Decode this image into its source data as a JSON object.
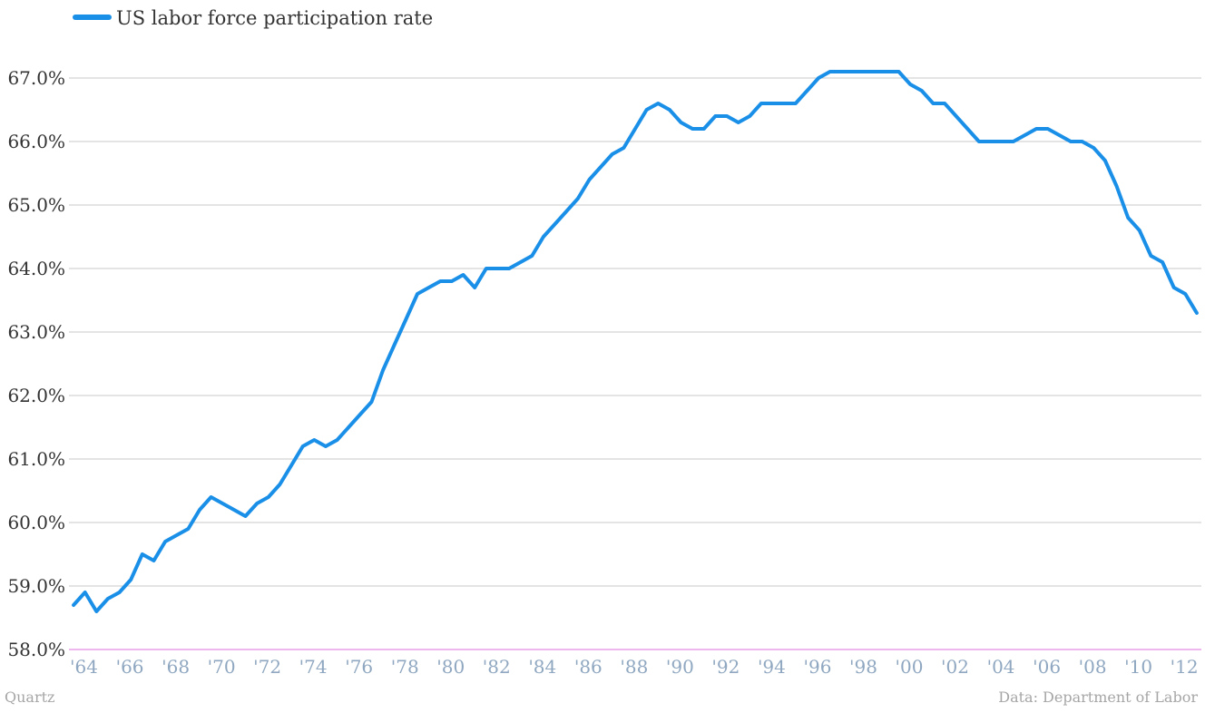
{
  "chart_data": {
    "type": "line",
    "title": "",
    "xlabel": "",
    "ylabel": "",
    "ylim": [
      58.0,
      67.3
    ],
    "xlim": [
      1963.8,
      2013.2
    ],
    "y_ticks": [
      "58.0%",
      "59.0%",
      "60.0%",
      "61.0%",
      "62.0%",
      "63.0%",
      "64.0%",
      "65.0%",
      "66.0%",
      "67.0%"
    ],
    "x_ticks": [
      "'64",
      "'66",
      "'68",
      "'70",
      "'72",
      "'74",
      "'76",
      "'78",
      "'80",
      "'82",
      "'84",
      "'86",
      "'88",
      "'90",
      "'92",
      "'94",
      "'96",
      "'98",
      "'00",
      "'02",
      "'04",
      "'06",
      "'08",
      "'10",
      "'12"
    ],
    "grid": true,
    "legend_position": "top-left",
    "colors": {
      "series": "#1a8fe8",
      "grid": "#c8c8c8",
      "baseline": "#e8a0e8"
    },
    "series": [
      {
        "name": "US labor force participation rate",
        "x": [
          1964.0,
          1964.5,
          1965.0,
          1965.5,
          1966.0,
          1966.5,
          1967.0,
          1967.5,
          1968.0,
          1968.5,
          1969.0,
          1969.5,
          1970.0,
          1970.5,
          1971.0,
          1971.5,
          1972.0,
          1972.5,
          1973.0,
          1973.5,
          1974.0,
          1974.5,
          1975.0,
          1975.5,
          1976.0,
          1976.5,
          1977.0,
          1977.5,
          1978.0,
          1978.5,
          1979.0,
          1979.5,
          1980.0,
          1980.5,
          1981.0,
          1981.5,
          1982.0,
          1982.5,
          1983.0,
          1983.5,
          1984.0,
          1984.5,
          1985.0,
          1985.5,
          1986.0,
          1986.5,
          1987.0,
          1987.5,
          1988.0,
          1988.5,
          1989.0,
          1989.5,
          1990.0,
          1990.5,
          1991.0,
          1991.5,
          1992.0,
          1992.5,
          1993.0,
          1993.5,
          1994.0,
          1994.5,
          1995.0,
          1995.5,
          1996.0,
          1996.5,
          1997.0,
          1997.5,
          1998.0,
          1998.5,
          1999.0,
          1999.5,
          2000.0,
          2000.5,
          2001.0,
          2001.5,
          2002.0,
          2002.5,
          2003.0,
          2003.5,
          2004.0,
          2004.5,
          2005.0,
          2005.5,
          2006.0,
          2006.5,
          2007.0,
          2007.5,
          2008.0,
          2008.5,
          2009.0,
          2009.5,
          2010.0,
          2010.5,
          2011.0,
          2011.5,
          2012.0,
          2012.5,
          2013.0
        ],
        "values": [
          58.7,
          58.9,
          58.6,
          58.8,
          58.9,
          59.1,
          59.5,
          59.4,
          59.7,
          59.8,
          59.9,
          60.2,
          60.4,
          60.3,
          60.2,
          60.1,
          60.3,
          60.4,
          60.6,
          60.9,
          61.2,
          61.3,
          61.2,
          61.3,
          61.5,
          61.7,
          61.9,
          62.4,
          62.8,
          63.2,
          63.6,
          63.7,
          63.8,
          63.8,
          63.9,
          63.7,
          64.0,
          64.0,
          64.0,
          64.1,
          64.2,
          64.5,
          64.7,
          64.9,
          65.1,
          65.4,
          65.6,
          65.8,
          65.9,
          66.2,
          66.5,
          66.6,
          66.5,
          66.3,
          66.2,
          66.2,
          66.4,
          66.4,
          66.3,
          66.4,
          66.6,
          66.6,
          66.6,
          66.6,
          66.8,
          67.0,
          67.1,
          67.1,
          67.1,
          67.1,
          67.1,
          67.1,
          67.1,
          66.9,
          66.8,
          66.6,
          66.6,
          66.4,
          66.2,
          66.0,
          66.0,
          66.0,
          66.0,
          66.1,
          66.2,
          66.2,
          66.1,
          66.0,
          66.0,
          65.9,
          65.7,
          65.3,
          64.8,
          64.6,
          64.2,
          64.1,
          63.7,
          63.6,
          63.3
        ]
      }
    ]
  },
  "footer": {
    "source_left": "Quartz",
    "source_right": "Data: Department of Labor"
  }
}
